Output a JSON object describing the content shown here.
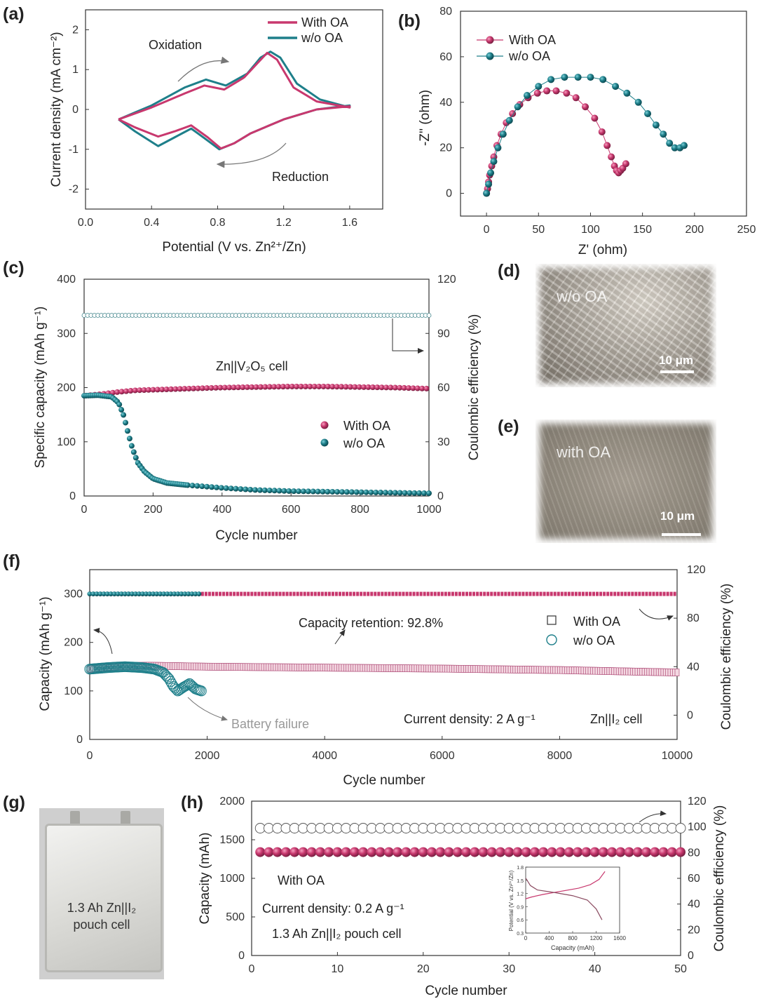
{
  "colors": {
    "with": "#c8386e",
    "without": "#1e7f8a",
    "axis": "#333333",
    "arrow": "#777777"
  },
  "panels": {
    "a": "(a)",
    "b": "(b)",
    "c": "(c)",
    "d": "(d)",
    "e": "(e)",
    "f": "(f)",
    "g": "(g)",
    "h": "(h)"
  },
  "panel_a": {
    "ylabel": "Current density (mA cm⁻²)",
    "xlabel": "Potential (V vs. Zn²⁺/Zn)",
    "legend": [
      "With OA",
      "w/o OA"
    ],
    "annotations": [
      "Oxidation",
      "Reduction"
    ]
  },
  "panel_b": {
    "ylabel": "-Z'' (ohm)",
    "xlabel": "Z' (ohm)",
    "legend": [
      "With OA",
      "w/o OA"
    ]
  },
  "panel_c": {
    "ylabel_left": "Specific capacity (mAh g⁻¹)",
    "ylabel_right": "Coulombic efficiency (%)",
    "xlabel": "Cycle number",
    "cell": "Zn||V₂O₅ cell",
    "legend": [
      "With OA",
      "w/o OA"
    ]
  },
  "panel_d": {
    "label": "w/o OA",
    "scale": "10 μm"
  },
  "panel_e": {
    "label": "with OA",
    "scale": "10 μm"
  },
  "panel_f": {
    "ylabel_left": "Capacity (mAh g⁻¹)",
    "ylabel_right": "Coulombic efficiency (%)",
    "xlabel": "Cycle number",
    "legend": [
      "With OA",
      "w/o OA"
    ],
    "retention": "Capacity retention: 92.8%",
    "failure": "Battery failure",
    "current": "Current density: 2 A g⁻¹",
    "cell": "Zn||I₂ cell"
  },
  "panel_g": {
    "line1": "1.3 Ah Zn||I₂",
    "line2": "pouch cell"
  },
  "panel_h": {
    "ylabel_left": "Capacity (mAh)",
    "ylabel_right": "Coulombic efficiency (%)",
    "xlabel": "Cycle number",
    "with": "With OA",
    "current": "Current density: 0.2 A g⁻¹",
    "cell": "1.3 Ah Zn||I₂ pouch cell",
    "inset_ylabel": "Potential (V vs. Zn²⁺/Zn)",
    "inset_xlabel": "Capacity (mAh)"
  },
  "chart_data": [
    {
      "id": "a",
      "type": "line",
      "title": "",
      "xlabel": "Potential (V vs. Zn2+/Zn)",
      "ylabel": "Current density (mA cm-2)",
      "xlim": [
        0.0,
        1.8
      ],
      "ylim": [
        -2.5,
        2.5
      ],
      "xticks": [
        0.0,
        0.4,
        0.8,
        1.2,
        1.6
      ],
      "yticks": [
        -2,
        -1,
        0,
        1,
        2
      ],
      "series": [
        {
          "name": "With OA",
          "upper": [
            [
              0.2,
              -0.25
            ],
            [
              0.4,
              0.05
            ],
            [
              0.6,
              0.4
            ],
            [
              0.72,
              0.6
            ],
            [
              0.84,
              0.5
            ],
            [
              0.96,
              0.8
            ],
            [
              1.05,
              1.2
            ],
            [
              1.1,
              1.42
            ],
            [
              1.16,
              1.25
            ],
            [
              1.26,
              0.55
            ],
            [
              1.4,
              0.2
            ],
            [
              1.6,
              0.05
            ]
          ],
          "lower": [
            [
              1.6,
              0.08
            ],
            [
              1.4,
              0.0
            ],
            [
              1.2,
              -0.25
            ],
            [
              1.0,
              -0.6
            ],
            [
              0.9,
              -0.85
            ],
            [
              0.82,
              -0.98
            ],
            [
              0.74,
              -0.7
            ],
            [
              0.64,
              -0.4
            ],
            [
              0.54,
              -0.55
            ],
            [
              0.44,
              -0.68
            ],
            [
              0.3,
              -0.45
            ],
            [
              0.2,
              -0.25
            ]
          ]
        },
        {
          "name": "w/o OA",
          "upper": [
            [
              0.2,
              -0.25
            ],
            [
              0.4,
              0.1
            ],
            [
              0.6,
              0.55
            ],
            [
              0.73,
              0.75
            ],
            [
              0.85,
              0.6
            ],
            [
              0.98,
              0.9
            ],
            [
              1.06,
              1.3
            ],
            [
              1.12,
              1.45
            ],
            [
              1.18,
              1.3
            ],
            [
              1.28,
              0.65
            ],
            [
              1.42,
              0.25
            ],
            [
              1.6,
              0.05
            ]
          ],
          "lower": [
            [
              1.6,
              0.1
            ],
            [
              1.4,
              0.0
            ],
            [
              1.2,
              -0.25
            ],
            [
              1.0,
              -0.6
            ],
            [
              0.9,
              -0.85
            ],
            [
              0.81,
              -1.0
            ],
            [
              0.72,
              -0.72
            ],
            [
              0.64,
              -0.48
            ],
            [
              0.54,
              -0.7
            ],
            [
              0.44,
              -0.92
            ],
            [
              0.3,
              -0.55
            ],
            [
              0.2,
              -0.25
            ]
          ]
        }
      ]
    },
    {
      "id": "b",
      "type": "scatter",
      "title": "",
      "xlabel": "Z' (ohm)",
      "ylabel": "-Z'' (ohm)",
      "xlim": [
        -25,
        250
      ],
      "ylim": [
        -10,
        80
      ],
      "xticks": [
        0,
        50,
        100,
        150,
        200,
        250
      ],
      "yticks": [
        0,
        20,
        40,
        60,
        80
      ],
      "series": [
        {
          "name": "With OA",
          "points": [
            [
              0,
              0
            ],
            [
              1,
              2
            ],
            [
              2,
              5
            ],
            [
              3,
              8
            ],
            [
              5,
              12
            ],
            [
              7,
              16
            ],
            [
              10,
              21
            ],
            [
              14,
              26
            ],
            [
              19,
              31
            ],
            [
              25,
              35
            ],
            [
              32,
              39
            ],
            [
              40,
              42
            ],
            [
              49,
              44
            ],
            [
              58,
              45
            ],
            [
              67,
              45
            ],
            [
              77,
              44
            ],
            [
              86,
              42
            ],
            [
              95,
              38
            ],
            [
              104,
              33
            ],
            [
              111,
              27
            ],
            [
              116,
              21
            ],
            [
              120,
              16
            ],
            [
              123,
              12
            ],
            [
              125,
              10
            ],
            [
              127,
              9
            ],
            [
              129,
              10
            ],
            [
              131,
              11
            ],
            [
              134,
              13
            ]
          ]
        },
        {
          "name": "w/o OA",
          "points": [
            [
              0,
              0
            ],
            [
              2,
              4
            ],
            [
              4,
              9
            ],
            [
              7,
              14
            ],
            [
              11,
              20
            ],
            [
              16,
              26
            ],
            [
              22,
              32
            ],
            [
              30,
              38
            ],
            [
              39,
              43
            ],
            [
              50,
              47
            ],
            [
              62,
              50
            ],
            [
              75,
              51
            ],
            [
              88,
              51
            ],
            [
              100,
              51
            ],
            [
              112,
              50
            ],
            [
              124,
              47
            ],
            [
              135,
              44
            ],
            [
              146,
              40
            ],
            [
              155,
              35
            ],
            [
              163,
              30
            ],
            [
              170,
              26
            ],
            [
              176,
              22
            ],
            [
              181,
              20
            ],
            [
              186,
              20
            ],
            [
              190,
              21
            ]
          ]
        }
      ]
    },
    {
      "id": "c",
      "type": "scatter",
      "title": "",
      "xlabel": "Cycle number",
      "ylabel": "Specific capacity (mAh g-1)",
      "ylabel_right": "Coulombic efficiency (%)",
      "xlim": [
        0,
        1000
      ],
      "ylim": [
        0,
        400
      ],
      "ylim_right": [
        0,
        120
      ],
      "xticks": [
        0,
        200,
        400,
        600,
        800,
        1000
      ],
      "yticks": [
        0,
        100,
        200,
        300,
        400
      ],
      "yticks_right": [
        0,
        30,
        60,
        90,
        120
      ],
      "series": [
        {
          "name": "With OA capacity",
          "points": [
            [
              0,
              185
            ],
            [
              50,
              188
            ],
            [
              100,
              192
            ],
            [
              150,
              195
            ],
            [
              200,
              196
            ],
            [
              300,
              198
            ],
            [
              400,
              200
            ],
            [
              500,
              201
            ],
            [
              600,
              202
            ],
            [
              700,
              202
            ],
            [
              800,
              201
            ],
            [
              900,
              200
            ],
            [
              1000,
              198
            ]
          ]
        },
        {
          "name": "w/o OA capacity",
          "points": [
            [
              0,
              185
            ],
            [
              40,
              186
            ],
            [
              80,
              183
            ],
            [
              100,
              172
            ],
            [
              115,
              148
            ],
            [
              128,
              115
            ],
            [
              140,
              88
            ],
            [
              155,
              62
            ],
            [
              175,
              45
            ],
            [
              200,
              32
            ],
            [
              240,
              24
            ],
            [
              300,
              20
            ],
            [
              400,
              15
            ],
            [
              500,
              11
            ],
            [
              600,
              9
            ],
            [
              700,
              8
            ],
            [
              800,
              7
            ],
            [
              900,
              6
            ],
            [
              1000,
              5
            ]
          ]
        },
        {
          "name": "Coulombic efficiency",
          "value": 100
        }
      ]
    },
    {
      "id": "f",
      "type": "scatter",
      "title": "",
      "xlabel": "Cycle number",
      "ylabel": "Capacity (mAh g-1)",
      "ylabel_right": "Coulombic efficiency (%)",
      "xlim": [
        0,
        10000
      ],
      "ylim": [
        0,
        350
      ],
      "ylim_right": [
        -20,
        120
      ],
      "xticks": [
        0,
        2000,
        4000,
        6000,
        8000,
        10000
      ],
      "yticks": [
        0,
        100,
        200,
        300
      ],
      "yticks_right": [
        0,
        40,
        80,
        120
      ],
      "series": [
        {
          "name": "With OA capacity",
          "points": [
            [
              0,
              145
            ],
            [
              500,
              151
            ],
            [
              1000,
              152
            ],
            [
              2000,
              150
            ],
            [
              4000,
              148
            ],
            [
              6000,
              146
            ],
            [
              8000,
              143
            ],
            [
              10000,
              138
            ]
          ]
        },
        {
          "name": "w/o OA capacity",
          "points": [
            [
              0,
              145
            ],
            [
              300,
              148
            ],
            [
              600,
              150
            ],
            [
              900,
              148
            ],
            [
              1100,
              145
            ],
            [
              1250,
              138
            ],
            [
              1350,
              125
            ],
            [
              1420,
              110
            ],
            [
              1500,
              100
            ],
            [
              1600,
              108
            ],
            [
              1700,
              115
            ],
            [
              1800,
              104
            ],
            [
              1900,
              100
            ]
          ]
        },
        {
          "name": "With OA CE",
          "value": 100
        },
        {
          "name": "w/o OA CE",
          "value": 100,
          "end_cycle": 1900
        }
      ]
    },
    {
      "id": "h",
      "type": "scatter",
      "title": "",
      "xlabel": "Cycle number",
      "ylabel": "Capacity (mAh)",
      "ylabel_right": "Coulombic efficiency (%)",
      "xlim": [
        0,
        50
      ],
      "ylim": [
        0,
        2000
      ],
      "ylim_right": [
        0,
        120
      ],
      "xticks": [
        0,
        10,
        20,
        30,
        40,
        50
      ],
      "yticks": [
        0,
        500,
        1000,
        1500,
        2000
      ],
      "yticks_right": [
        0,
        20,
        40,
        60,
        80,
        100,
        120
      ],
      "series": [
        {
          "name": "Capacity",
          "value": 1340,
          "cycles": 50
        },
        {
          "name": "Coulombic efficiency",
          "value": 99,
          "cycles": 50
        }
      ],
      "inset": {
        "xlabel": "Capacity (mAh)",
        "ylabel": "Potential (V vs. Zn2+/Zn)",
        "xlim": [
          0,
          1600
        ],
        "ylim": [
          0.3,
          1.8
        ],
        "xticks": [
          0,
          400,
          800,
          1200,
          1600
        ],
        "yticks": [
          0.3,
          0.6,
          0.9,
          1.2,
          1.5,
          1.8
        ],
        "charge": [
          [
            0,
            1.08
          ],
          [
            100,
            1.12
          ],
          [
            300,
            1.18
          ],
          [
            600,
            1.25
          ],
          [
            900,
            1.32
          ],
          [
            1100,
            1.4
          ],
          [
            1250,
            1.52
          ],
          [
            1350,
            1.7
          ]
        ],
        "discharge": [
          [
            0,
            1.55
          ],
          [
            80,
            1.38
          ],
          [
            200,
            1.28
          ],
          [
            500,
            1.22
          ],
          [
            800,
            1.15
          ],
          [
            1050,
            1.05
          ],
          [
            1200,
            0.85
          ],
          [
            1300,
            0.6
          ]
        ]
      }
    }
  ]
}
